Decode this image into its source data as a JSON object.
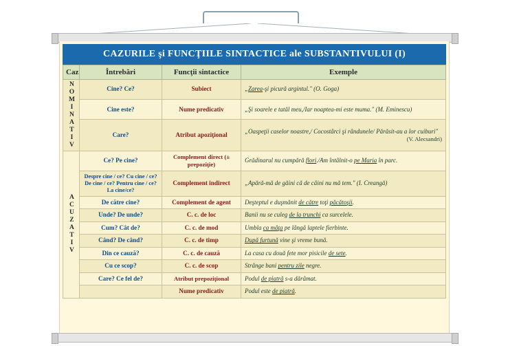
{
  "title": "CAZURILE şi FUNCŢIILE SINTACTICE ale SUBSTANTIVULUI (I)",
  "headers": {
    "caz": "Caz",
    "intrebari": "Întrebări",
    "functii": "Funcţii sintactice",
    "exemple": "Exemple"
  },
  "nominativ": {
    "label": "NOMINATIV",
    "rows": [
      {
        "q": "Cine? Ce?",
        "f": "Subiect",
        "ex": "„<u>Zarea</u>-şi picură argintul.\" (O. Goga)"
      },
      {
        "q": "Cine este?",
        "f": "Nume predicativ",
        "ex": "„Şi soarele e tatăl meu,/Iar noaptea-mi este muma.\" (M. Eminescu)"
      },
      {
        "q": "Care?",
        "f": "Atribut apoziţional",
        "ex": "„Oaspeţii caselor noastre,/ Cocostârci şi rândunele/ Părăsit-au a lor cuiburi\"",
        "author": "(V. Alecsandri)"
      }
    ]
  },
  "acuzativ": {
    "label": "ACUZATIV",
    "rows": [
      {
        "q": "Ce? Pe cine?",
        "f": "Complement direct (± prepoziţie)",
        "ex": "Grădinarul nu cumpără <u>flori</u>./Am întâlnit-o <u>pe Maria</u> în parc."
      },
      {
        "q": "Despre cine / ce? Cu cine / ce? De cine / ce? Pentru cine / ce? La cine/ce?",
        "f": "Complement indirect",
        "ex": "„Apără-mă de găini că de câini nu mă tem.\" (I. Creangă)"
      },
      {
        "q": "De către cine?",
        "f": "Complement de agent",
        "ex": "Deşteptul e duşmănit <u>de către</u> toţi <u>păcătoşii</u>."
      },
      {
        "q": "Unde? De unde?",
        "f": "C. c. de loc",
        "ex": "Banii nu se culeg <u>de la trunchi</u> ca surcelele."
      },
      {
        "q": "Cum? Cât de?",
        "f": "C. c. de mod",
        "ex": "Umbla <u>ca mâţa</u> pe lângă laptele fierbinte."
      },
      {
        "q": "Când? De când?",
        "f": "C. c. de timp",
        "ex": "<u>După furtună</u> vine şi vreme bună."
      },
      {
        "q": "Din ce cauză?",
        "f": "C. c. de cauză",
        "ex": "La casa cu două fete mor pisicile <u>de sete</u>."
      },
      {
        "q": "Cu ce scop?",
        "f": "C. c. de scop",
        "ex": "Strânge bani <u>pentru zile</u> negre."
      },
      {
        "q": "Care? Ce fel de?",
        "f": "Atribut prepoziţional",
        "ex": "Podul <u>de piatră</u> s-a dărâmat."
      },
      {
        "q": "",
        "f": "Nume predicativ",
        "ex": "Podul este <u>de piatră</u>."
      }
    ]
  },
  "colors": {
    "title_bg": "#1a6aad",
    "title_fg": "#ffffff",
    "header_bg": "#d8e4c0",
    "poster_bg": "#fff8dc",
    "question_color": "#0d4d8c",
    "function_color": "#8b1a1a",
    "example_color": "#1e3a2a",
    "row_band_a": "#f1eac2",
    "row_band_b": "#faf4d4"
  }
}
